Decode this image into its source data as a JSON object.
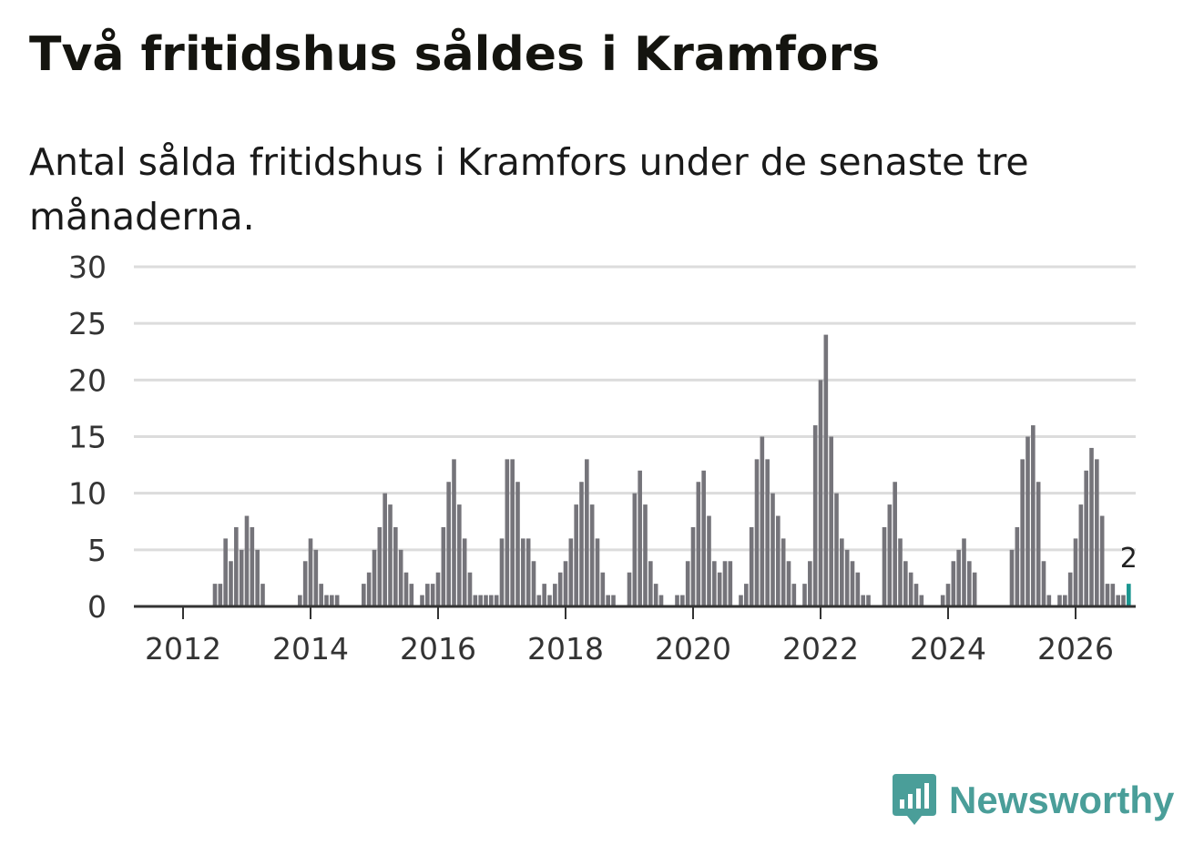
{
  "header": {
    "title": "Två fritidshus såldes i Kramfors",
    "subtitle": "Antal sålda fritidshus i Kramfors under de senaste tre månaderna."
  },
  "brand": {
    "name": "Newsworthy",
    "color": "#4a9e99"
  },
  "colors": {
    "bar": "#75747a",
    "highlight": "#1a9690",
    "grid": "#dcdcdc",
    "axis": "#333333"
  },
  "chart_data": {
    "type": "bar",
    "title": "Två fritidshus såldes i Kramfors",
    "xlabel": "",
    "ylabel": "",
    "ylim": [
      0,
      30
    ],
    "yticks": [
      "0",
      "5",
      "10",
      "15",
      "20",
      "25",
      "30"
    ],
    "xticks": [
      "2012",
      "2014",
      "2016",
      "2018",
      "2020",
      "2022",
      "2024",
      "2026"
    ],
    "start": "2011-07",
    "frequency": "monthly",
    "values": [
      0,
      0,
      0,
      0,
      0,
      0,
      0,
      0,
      0,
      0,
      0,
      0,
      2,
      2,
      6,
      4,
      7,
      5,
      8,
      7,
      5,
      2,
      0,
      0,
      0,
      0,
      0,
      0,
      1,
      4,
      6,
      5,
      2,
      1,
      1,
      1,
      0,
      0,
      0,
      0,
      2,
      3,
      5,
      7,
      10,
      9,
      7,
      5,
      3,
      2,
      0,
      1,
      2,
      2,
      3,
      7,
      11,
      13,
      9,
      6,
      3,
      1,
      1,
      1,
      1,
      1,
      6,
      13,
      13,
      11,
      6,
      6,
      4,
      1,
      2,
      1,
      2,
      3,
      4,
      6,
      9,
      11,
      13,
      9,
      6,
      3,
      1,
      1,
      0,
      0,
      3,
      10,
      12,
      9,
      4,
      2,
      1,
      0,
      0,
      1,
      1,
      4,
      7,
      11,
      12,
      8,
      4,
      3,
      4,
      4,
      0,
      1,
      2,
      7,
      13,
      15,
      13,
      10,
      8,
      6,
      4,
      2,
      0,
      2,
      4,
      16,
      20,
      24,
      15,
      10,
      6,
      5,
      4,
      3,
      1,
      1,
      0,
      0,
      7,
      9,
      11,
      6,
      4,
      3,
      2,
      1,
      0,
      0,
      0,
      1,
      2,
      4,
      5,
      6,
      4,
      3,
      0,
      0,
      0,
      0,
      0,
      0,
      5,
      7,
      13,
      15,
      16,
      11,
      4,
      1,
      0,
      1,
      1,
      3,
      6,
      9,
      12,
      14,
      13,
      8,
      2,
      2,
      1,
      1,
      2
    ],
    "highlight_last": true,
    "last_label": "2"
  }
}
